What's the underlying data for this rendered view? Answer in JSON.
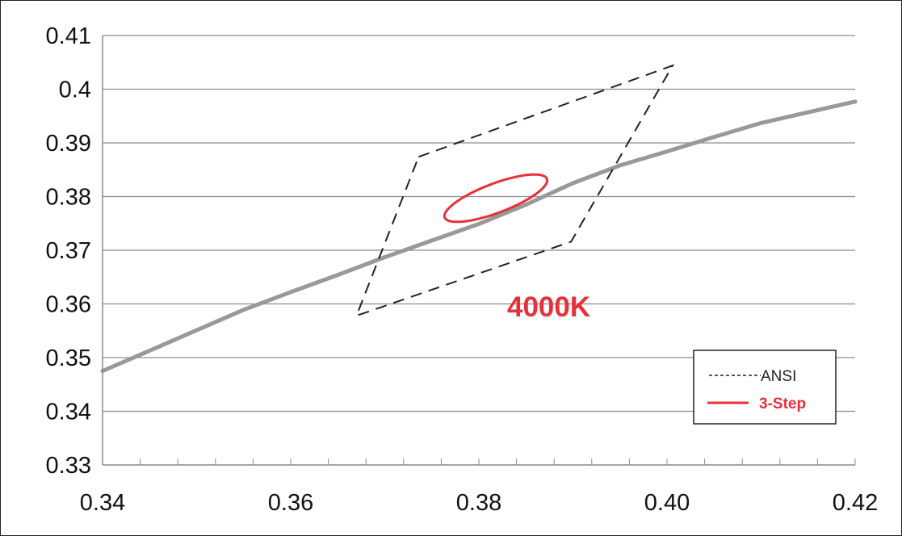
{
  "chart_data": {
    "type": "line",
    "title": "",
    "xlabel": "",
    "ylabel": "",
    "xlim": [
      0.34,
      0.42
    ],
    "ylim": [
      0.33,
      0.41
    ],
    "x_ticks": [
      "0.34",
      "0.36",
      "0.38",
      "0.40",
      "0.42"
    ],
    "y_ticks": [
      "0.33",
      "0.34",
      "0.35",
      "0.36",
      "0.37",
      "0.38",
      "0.39",
      "0.4",
      "0.41"
    ],
    "grid": "horizontal",
    "legend_position": "bottom-right",
    "annotation": "4000K",
    "series": [
      {
        "name": "",
        "kind": "line",
        "color": "#999999",
        "x": [
          0.34,
          0.345,
          0.35,
          0.355,
          0.36,
          0.365,
          0.37,
          0.375,
          0.38,
          0.385,
          0.39,
          0.395,
          0.4,
          0.405,
          0.41,
          0.415,
          0.42
        ],
        "y": [
          0.3475,
          0.3513,
          0.3551,
          0.3589,
          0.3622,
          0.3654,
          0.3687,
          0.3718,
          0.3749,
          0.3785,
          0.3825,
          0.3858,
          0.3884,
          0.3911,
          0.3937,
          0.3957,
          0.3977
        ]
      },
      {
        "name": "ANSI",
        "kind": "dashed-quadrilateral",
        "color": "#222222",
        "x": [
          0.3736,
          0.4006,
          0.3898,
          0.367,
          0.3736
        ],
        "y": [
          0.3874,
          0.4044,
          0.3716,
          0.3578,
          0.3874
        ]
      },
      {
        "name": "3-Step",
        "kind": "ellipse",
        "color": "#e8303a",
        "center": [
          0.3818,
          0.3797
        ],
        "semi_axes": [
          0.0066,
          0.0024
        ],
        "rotation_deg": 37
      }
    ]
  }
}
